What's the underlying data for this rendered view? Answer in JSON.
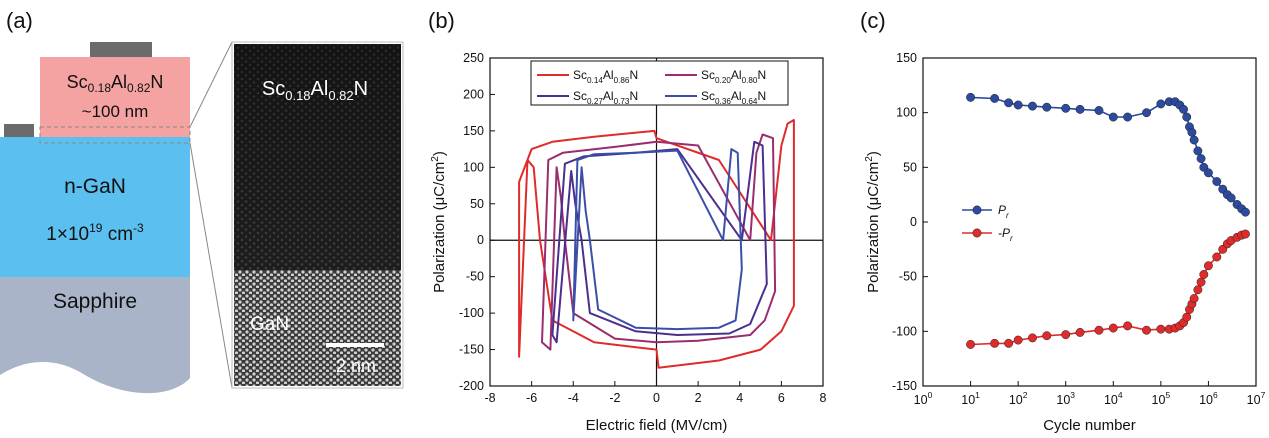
{
  "panels": {
    "a": {
      "label": "(a)",
      "layers": {
        "scaln_line1": "Sc0.18Al0.82N",
        "scaln_line2": "~100 nm",
        "ngan_line1": "n-GaN",
        "ngan_line2": "1×1019 cm-3",
        "sapphire": "Sapphire"
      },
      "tem": {
        "top_label": "Sc0.18Al0.82N",
        "bottom_label": "GaN",
        "scale_bar": "2 nm"
      },
      "colors": {
        "scaln": "#f4a2a2",
        "ngan": "#5bbfef",
        "sapphire": "#a9b4c8",
        "contact": "#6b6b6b"
      }
    },
    "b": {
      "label": "(b)"
    },
    "c": {
      "label": "(c)"
    }
  },
  "chart_data": [
    {
      "panel": "b",
      "type": "line",
      "title": "",
      "xlabel": "Electric field (MV/cm)",
      "ylabel": "Polarization (μC/cm2)",
      "xlim": [
        -8,
        8
      ],
      "ylim": [
        -200,
        250
      ],
      "xticks": [
        -8,
        -6,
        -4,
        -2,
        0,
        2,
        4,
        6,
        8
      ],
      "yticks": [
        -200,
        -150,
        -100,
        -50,
        0,
        50,
        100,
        150,
        200,
        250
      ],
      "legend_position": "top-center",
      "series": [
        {
          "name": "Sc0.14Al0.86N",
          "color": "#e02b2b",
          "x": [
            -6.2,
            -5.9,
            -5.6,
            -5.0,
            -3.0,
            0.0,
            0.1,
            3.0,
            5.0,
            6.0,
            6.6,
            6.6,
            6.3,
            6.0,
            5.5,
            3.0,
            0.0,
            -0.1,
            -3.0,
            -5.0,
            -6.0,
            -6.6,
            -6.6,
            -6.2
          ],
          "y": [
            110,
            100,
            0,
            -110,
            -140,
            -150,
            -175,
            -165,
            -150,
            -125,
            -90,
            165,
            160,
            130,
            0,
            110,
            140,
            150,
            142,
            135,
            125,
            80,
            -160,
            110
          ]
        },
        {
          "name": "Sc0.20Al0.80N",
          "color": "#9b2d6e",
          "x": [
            -4.8,
            -4.6,
            -4.4,
            -4.0,
            -2.0,
            0.0,
            2.0,
            4.5,
            5.2,
            5.7,
            5.6,
            5.1,
            4.8,
            4.5,
            2.0,
            0.0,
            -2.0,
            -4.5,
            -5.2,
            -5.5,
            -5.1,
            -4.8
          ],
          "y": [
            100,
            60,
            0,
            -100,
            -135,
            -140,
            -138,
            -130,
            -110,
            -70,
            140,
            145,
            120,
            0,
            130,
            135,
            128,
            120,
            110,
            -140,
            -150,
            100
          ]
        },
        {
          "name": "Sc0.27Al0.73N",
          "color": "#4a2f8f",
          "x": [
            -4.1,
            -3.9,
            -3.6,
            -3.2,
            -1.0,
            1.0,
            3.5,
            4.5,
            5.3,
            5.1,
            4.7,
            4.1,
            1.0,
            -1.0,
            -3.5,
            -4.4,
            -5.0,
            -4.8,
            -4.1
          ],
          "y": [
            95,
            50,
            0,
            -100,
            -125,
            -130,
            -128,
            -115,
            -60,
            130,
            135,
            0,
            125,
            120,
            115,
            105,
            -130,
            -140,
            95
          ]
        },
        {
          "name": "Sc0.36Al0.64N",
          "color": "#3b4fa8",
          "x": [
            -3.6,
            -3.4,
            -3.2,
            -2.8,
            -1.0,
            1.0,
            3.0,
            3.8,
            4.1,
            3.9,
            3.6,
            3.2,
            1.0,
            -1.0,
            -3.0,
            -3.8,
            -4.0,
            -3.6
          ],
          "y": [
            100,
            40,
            0,
            -95,
            -120,
            -122,
            -120,
            -110,
            -40,
            120,
            125,
            0,
            123,
            120,
            118,
            110,
            -110,
            100
          ]
        }
      ]
    },
    {
      "panel": "c",
      "type": "line",
      "title": "",
      "xlabel": "Cycle number",
      "ylabel": "Polarization (μC/cm2)",
      "x_scale": "log",
      "xlim": [
        1,
        10000000
      ],
      "ylim": [
        -150,
        150
      ],
      "xticks": [
        1,
        10,
        100,
        1000,
        10000,
        100000,
        1000000,
        10000000
      ],
      "xtick_labels": [
        "100",
        "101",
        "102",
        "103",
        "104",
        "105",
        "106",
        "107"
      ],
      "yticks": [
        -150,
        -100,
        -50,
        0,
        50,
        100,
        150
      ],
      "legend_position": "center-left",
      "series": [
        {
          "name": "Pr",
          "color": "#2b4aa0",
          "x": [
            10,
            32,
            63,
            100,
            200,
            400,
            1000,
            2000,
            5000,
            10000,
            20000,
            50000,
            100000,
            150000,
            200000,
            250000,
            300000,
            350000,
            400000,
            450000,
            500000,
            600000,
            700000,
            800000,
            1000000,
            1500000,
            2000000,
            2500000,
            3000000,
            4000000,
            5000000,
            6000000
          ],
          "y": [
            114,
            113,
            109,
            107,
            106,
            105,
            104,
            103,
            102,
            96,
            96,
            100,
            108,
            110,
            110,
            107,
            103,
            96,
            87,
            82,
            75,
            65,
            58,
            50,
            45,
            37,
            30,
            25,
            22,
            16,
            12,
            9
          ]
        },
        {
          "name": "-Pr",
          "color": "#e02b2b",
          "x": [
            10,
            32,
            63,
            100,
            200,
            400,
            1000,
            2000,
            5000,
            10000,
            20000,
            50000,
            100000,
            150000,
            200000,
            250000,
            300000,
            350000,
            400000,
            450000,
            500000,
            600000,
            700000,
            800000,
            1000000,
            1500000,
            2000000,
            2500000,
            3000000,
            4000000,
            5000000,
            6000000
          ],
          "y": [
            -112,
            -111,
            -111,
            -108,
            -106,
            -104,
            -103,
            -101,
            -99,
            -97,
            -95,
            -99,
            -98,
            -98,
            -97,
            -95,
            -92,
            -87,
            -80,
            -75,
            -70,
            -62,
            -55,
            -48,
            -40,
            -32,
            -25,
            -20,
            -17,
            -14,
            -12,
            -11
          ]
        }
      ]
    }
  ]
}
